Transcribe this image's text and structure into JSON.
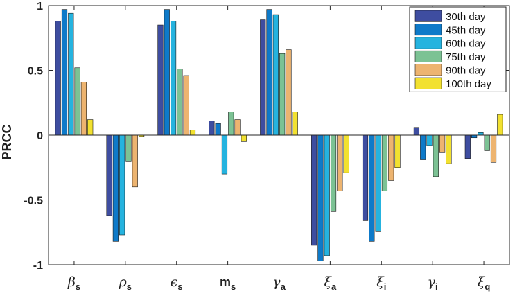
{
  "chart_data": {
    "type": "bar",
    "ylabel": "PRCC",
    "ylim": [
      -1,
      1
    ],
    "yticks": [
      -1,
      -0.5,
      0,
      0.5,
      1
    ],
    "ytick_labels": [
      "-1",
      "-0.5",
      "0",
      "0.5",
      "1"
    ],
    "legend_position": "top-right",
    "categories": [
      {
        "base": "β",
        "sub": "s",
        "style": "italic-greek"
      },
      {
        "base": "ρ",
        "sub": "s",
        "style": "italic-greek"
      },
      {
        "base": "ϵ",
        "sub": "s",
        "style": "italic-greek"
      },
      {
        "base": "m",
        "sub": "s",
        "style": "bold-roman"
      },
      {
        "base": "γ",
        "sub": "a",
        "style": "italic-greek"
      },
      {
        "base": "ξ",
        "sub": "a",
        "style": "italic-greek"
      },
      {
        "base": "ξ",
        "sub": "i",
        "style": "italic-greek"
      },
      {
        "base": "γ",
        "sub": "i",
        "style": "italic-greek"
      },
      {
        "base": "ξ",
        "sub": "q",
        "style": "italic-greek"
      }
    ],
    "series": [
      {
        "name": "30th day",
        "color": "#3E4DA0",
        "values": [
          0.88,
          -0.62,
          0.85,
          0.11,
          0.89,
          -0.85,
          -0.66,
          0.06,
          -0.18
        ]
      },
      {
        "name": "45th day",
        "color": "#0E7AC9",
        "values": [
          0.97,
          -0.82,
          0.97,
          0.09,
          0.97,
          -0.97,
          -0.82,
          -0.19,
          -0.02
        ]
      },
      {
        "name": "60th day",
        "color": "#25B3DF",
        "values": [
          0.94,
          -0.77,
          0.88,
          -0.3,
          0.93,
          -0.93,
          -0.74,
          -0.08,
          0.02
        ]
      },
      {
        "name": "75th day",
        "color": "#7CC294",
        "values": [
          0.52,
          -0.2,
          0.51,
          0.18,
          0.63,
          -0.59,
          -0.43,
          -0.32,
          -0.12
        ]
      },
      {
        "name": "90th day",
        "color": "#EDB470",
        "values": [
          0.41,
          -0.4,
          0.46,
          0.12,
          0.66,
          -0.43,
          -0.35,
          -0.13,
          -0.21
        ]
      },
      {
        "name": "100th day",
        "color": "#F2E130",
        "values": [
          0.12,
          -0.01,
          0.04,
          -0.05,
          0.18,
          -0.29,
          -0.25,
          -0.22,
          0.16
        ]
      }
    ]
  }
}
